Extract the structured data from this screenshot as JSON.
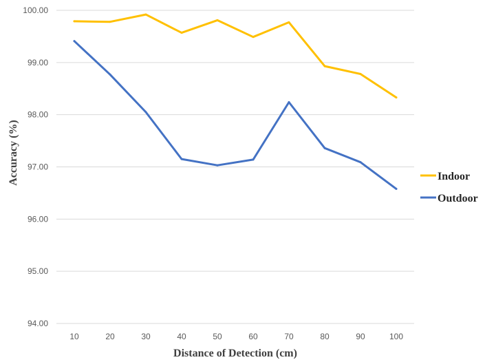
{
  "chart_data": {
    "type": "line",
    "title": "",
    "xlabel": "Distance of Detection (cm)",
    "ylabel": "Accuracy (%)",
    "categories": [
      "10",
      "20",
      "30",
      "40",
      "50",
      "60",
      "70",
      "80",
      "90",
      "100"
    ],
    "yticks": [
      "94.00",
      "95.00",
      "96.00",
      "97.00",
      "98.00",
      "99.00",
      "100.00"
    ],
    "ylim": [
      94,
      100
    ],
    "grid": "horizontal",
    "legend_position": "right",
    "series": [
      {
        "name": "Indoor",
        "color": "#FFC000",
        "values": [
          99.79,
          99.78,
          99.92,
          99.57,
          99.81,
          99.49,
          99.77,
          98.93,
          98.78,
          98.33
        ]
      },
      {
        "name": "Outdoor",
        "color": "#4472C4",
        "values": [
          99.41,
          98.77,
          98.05,
          97.15,
          97.03,
          97.14,
          98.24,
          97.36,
          97.09,
          96.58
        ]
      }
    ]
  }
}
